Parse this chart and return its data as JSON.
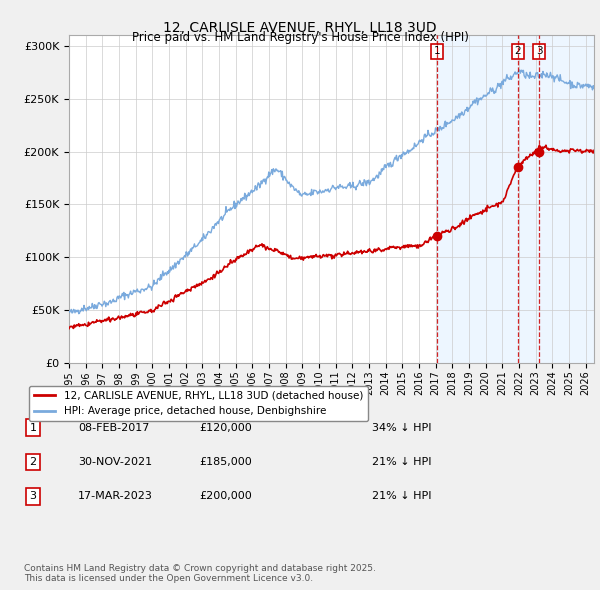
{
  "title": "12, CARLISLE AVENUE, RHYL, LL18 3UD",
  "subtitle": "Price paid vs. HM Land Registry's House Price Index (HPI)",
  "ylabel_ticks": [
    "£0",
    "£50K",
    "£100K",
    "£150K",
    "£200K",
    "£250K",
    "£300K"
  ],
  "ytick_values": [
    0,
    50000,
    100000,
    150000,
    200000,
    250000,
    300000
  ],
  "ylim": [
    0,
    310000
  ],
  "xlim_start": 1995.0,
  "xlim_end": 2026.5,
  "sale_dates": [
    2017.1,
    2021.92,
    2023.21
  ],
  "sale_prices": [
    120000,
    185000,
    200000
  ],
  "sale_labels": [
    "1",
    "2",
    "3"
  ],
  "vline_color": "#cc0000",
  "hpi_line_color": "#7aaadd",
  "hpi_fill_color": "#ddeeff",
  "price_line_color": "#cc0000",
  "background_color": "#f0f0f0",
  "plot_bg_color": "#ffffff",
  "grid_color": "#cccccc",
  "legend_items": [
    "12, CARLISLE AVENUE, RHYL, LL18 3UD (detached house)",
    "HPI: Average price, detached house, Denbighshire"
  ],
  "table_rows": [
    [
      "1",
      "08-FEB-2017",
      "£120,000",
      "34% ↓ HPI"
    ],
    [
      "2",
      "30-NOV-2021",
      "£185,000",
      "21% ↓ HPI"
    ],
    [
      "3",
      "17-MAR-2023",
      "£200,000",
      "21% ↓ HPI"
    ]
  ],
  "footnote": "Contains HM Land Registry data © Crown copyright and database right 2025.\nThis data is licensed under the Open Government Licence v3.0.",
  "xtick_years": [
    1995,
    1996,
    1997,
    1998,
    1999,
    2000,
    2001,
    2002,
    2003,
    2004,
    2005,
    2006,
    2007,
    2008,
    2009,
    2010,
    2011,
    2012,
    2013,
    2014,
    2015,
    2016,
    2017,
    2018,
    2019,
    2020,
    2021,
    2022,
    2023,
    2024,
    2025,
    2026
  ]
}
